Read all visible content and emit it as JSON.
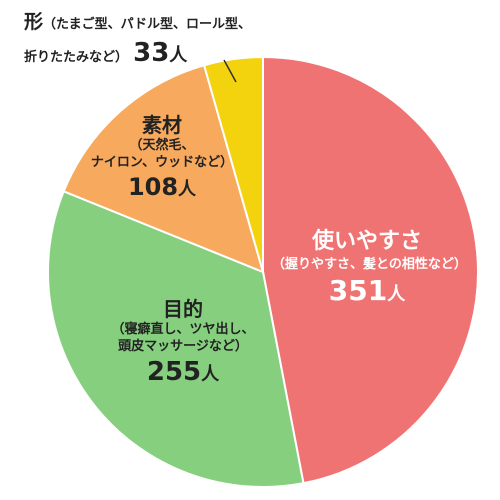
{
  "colors": {
    "ease": "#f07373",
    "purpose": "#86cf7f",
    "material": "#f7a95e",
    "shape": "#f3d20e",
    "border": "#ffffff",
    "leader": "#333333"
  },
  "chart_data": {
    "type": "pie",
    "unit": "人",
    "start": "12 o'clock",
    "direction": "clockwise",
    "slices": [
      {
        "key": "ease",
        "label": "使いやすさ",
        "sublabel": "（握りやすさ、髪との相性など）",
        "value": 351,
        "value_text": "351"
      },
      {
        "key": "purpose",
        "label": "目的",
        "sublabel1": "（寝癖直し、ツヤ出し、",
        "sublabel2": "頭皮マッサージなど）",
        "value": 255,
        "value_text": "255"
      },
      {
        "key": "material",
        "label": "素材",
        "sublabel1": "（天然毛、",
        "sublabel2": "ナイロン、ウッドなど）",
        "value": 108,
        "value_text": "108"
      },
      {
        "key": "shape",
        "label": "形",
        "sublabel1": "（たまご型、パドル型、ロール型、",
        "sublabel2": "折りたたみなど）",
        "value": 33,
        "value_text": "33"
      }
    ]
  }
}
